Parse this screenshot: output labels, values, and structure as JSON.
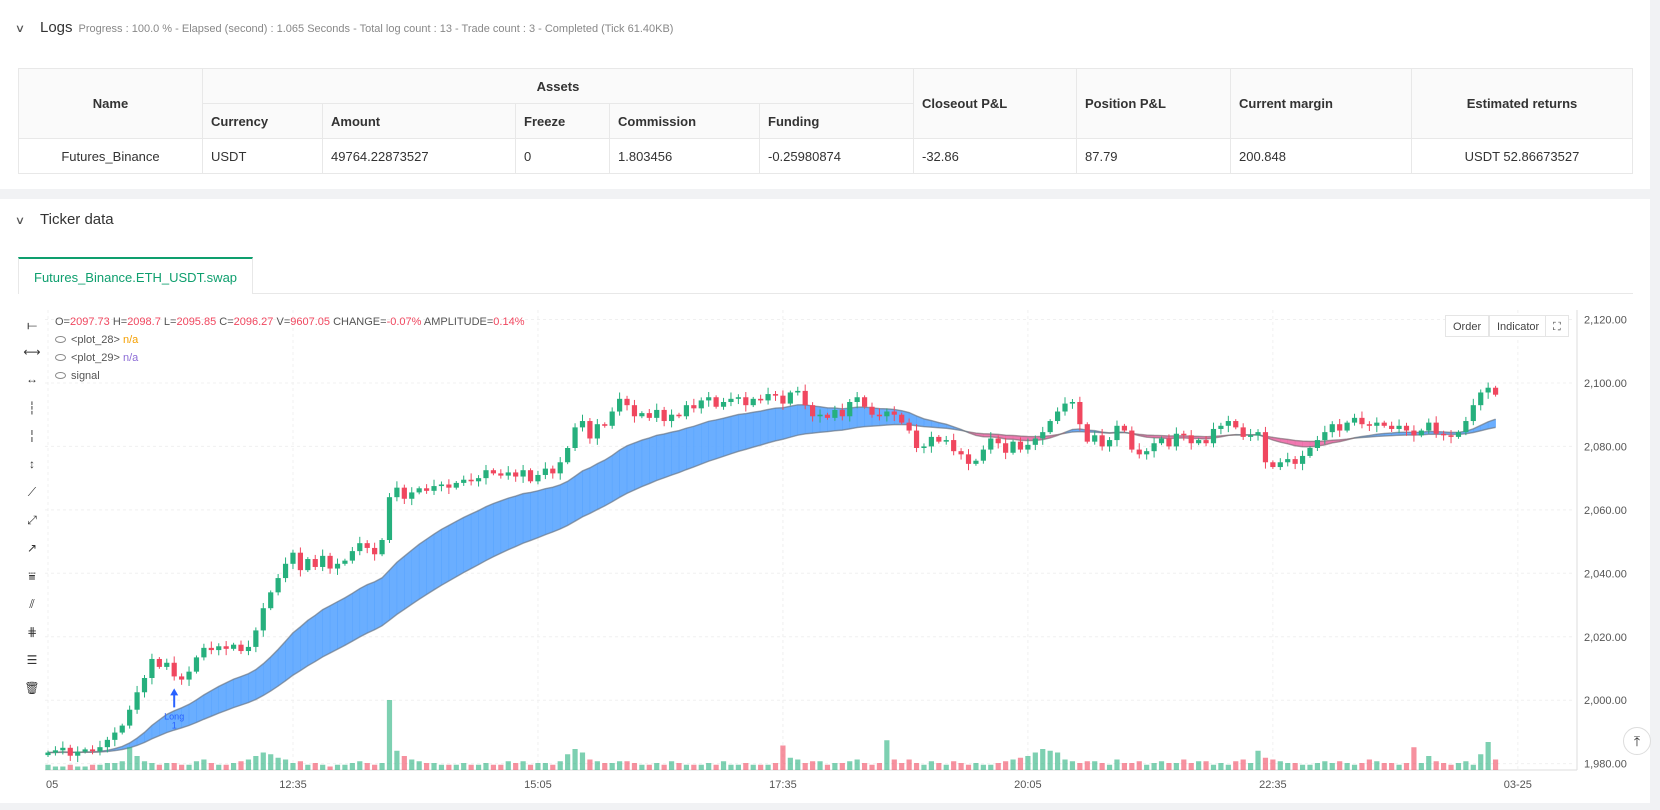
{
  "logs": {
    "title": "Logs",
    "status": "Progress : 100.0 % - Elapsed (second) : 1.065  Seconds - Total log count : 13 - Trade count : 3 - Completed (Tick 61.40KB)"
  },
  "assets_table": {
    "group_header": "Assets",
    "headers": {
      "name": "Name",
      "currency": "Currency",
      "amount": "Amount",
      "freeze": "Freeze",
      "commission": "Commission",
      "funding": "Funding",
      "closeout": "Closeout P&L",
      "position": "Position P&L",
      "margin": "Current margin",
      "returns": "Estimated returns"
    },
    "row": {
      "name": "Futures_Binance",
      "currency": "USDT",
      "amount": "49764.22873527",
      "freeze": "0",
      "commission": "1.803456",
      "funding": "-0.25980874",
      "closeout": "-32.86",
      "position": "87.79",
      "margin": "200.848",
      "returns": "USDT 52.86673527"
    }
  },
  "ticker": {
    "title": "Ticker data",
    "tab": "Futures_Binance.ETH_USDT.swap"
  },
  "legend": {
    "ohlc_o_label": "O=",
    "ohlc_o": "2097.73",
    "ohlc_h_label": "H=",
    "ohlc_h": "2098.7",
    "ohlc_l_label": "L=",
    "ohlc_l": "2095.85",
    "ohlc_c_label": "C=",
    "ohlc_c": "2096.27",
    "ohlc_v_label": "V=",
    "ohlc_v": "9607.05",
    "change_label": "CHANGE=",
    "change": "-0.07%",
    "amp_label": "AMPLITUDE=",
    "amp": "0.14%",
    "plot28": "<plot_28>",
    "plot28_val": "n/a",
    "plot29": "<plot_29>",
    "plot29_val": "n/a",
    "signal": "signal"
  },
  "controls": {
    "order": "Order",
    "indicator": "Indicator"
  },
  "chart_data": {
    "type": "candlestick",
    "symbol": "Futures_Binance.ETH_USDT.swap",
    "y_ticks": [
      "2,120.00",
      "2,100.00",
      "2,080.00",
      "2,060.00",
      "2,040.00",
      "2,020.00",
      "2,000.00",
      "1,980.00"
    ],
    "x_ticks": [
      "05",
      "12:35",
      "15:05",
      "17:35",
      "20:05",
      "22:35",
      "03-25"
    ],
    "ylim": [
      1978,
      2123
    ],
    "marker": {
      "label": "Long",
      "sub": "1",
      "price": 1999
    },
    "close_series": [
      1983.5,
      1984.2,
      1985.0,
      1982.5,
      1983.8,
      1984.5,
      1983.9,
      1985.2,
      1987.5,
      1989.8,
      1992.0,
      1997.0,
      2002.5,
      2007.0,
      2013.0,
      2010.5,
      2011.8,
      2007.5,
      2006.5,
      2009.0,
      2013.5,
      2016.5,
      2015.8,
      2017.0,
      2016.2,
      2017.5,
      2015.5,
      2016.8,
      2022.0,
      2029.0,
      2034.0,
      2038.5,
      2043.0,
      2046.5,
      2041.0,
      2044.5,
      2042.0,
      2045.5,
      2041.5,
      2043.0,
      2044.0,
      2047.0,
      2049.5,
      2048.0,
      2046.0,
      2050.5,
      2064.0,
      2067.0,
      2063.5,
      2065.5,
      2066.8,
      2066.0,
      2067.5,
      2068.0,
      2067.0,
      2068.5,
      2069.5,
      2069.0,
      2070.0,
      2072.5,
      2071.5,
      2070.8,
      2071.8,
      2070.5,
      2072.5,
      2069.0,
      2071.0,
      2073.0,
      2071.5,
      2075.0,
      2079.5,
      2086.0,
      2088.0,
      2082.5,
      2087.0,
      2086.5,
      2091.0,
      2095.0,
      2093.0,
      2089.5,
      2090.5,
      2089.0,
      2091.5,
      2088.0,
      2090.0,
      2089.5,
      2093.0,
      2092.0,
      2094.5,
      2095.5,
      2092.5,
      2094.0,
      2095.0,
      2095.5,
      2093.0,
      2095.0,
      2094.5,
      2096.5,
      2096.0,
      2093.5,
      2097.0,
      2097.5,
      2093.0,
      2089.5,
      2090.0,
      2089.0,
      2091.5,
      2089.5,
      2094.0,
      2095.5,
      2092.5,
      2090.0,
      2089.5,
      2091.0,
      2090.0,
      2087.5,
      2085.0,
      2079.5,
      2080.0,
      2083.0,
      2081.5,
      2082.0,
      2078.5,
      2077.5,
      2074.5,
      2075.5,
      2079.0,
      2082.5,
      2081.0,
      2078.0,
      2081.5,
      2079.0,
      2080.5,
      2082.5,
      2084.5,
      2088.0,
      2091.0,
      2093.5,
      2094.0,
      2087.0,
      2081.5,
      2083.5,
      2080.0,
      2082.0,
      2086.5,
      2085.0,
      2079.0,
      2077.5,
      2078.5,
      2081.0,
      2082.5,
      2080.0,
      2084.0,
      2083.5,
      2081.0,
      2082.0,
      2081.0,
      2085.5,
      2086.5,
      2088.0,
      2086.0,
      2083.0,
      2083.5,
      2084.5,
      2075.0,
      2073.5,
      2075.0,
      2076.0,
      2074.5,
      2077.0,
      2079.5,
      2082.0,
      2084.5,
      2087.0,
      2085.0,
      2087.5,
      2089.0,
      2087.0,
      2086.5,
      2087.5,
      2086.5,
      2085.5,
      2086.5,
      2085.0,
      2083.5,
      2085.0,
      2087.5,
      2084.0,
      2083.5,
      2083.0,
      2084.5,
      2088.0,
      2093.0,
      2097.0,
      2098.5,
      2096.3
    ],
    "volume_series": [
      3,
      2,
      2,
      3,
      2,
      2,
      3,
      3,
      4,
      4,
      5,
      13,
      8,
      5,
      4,
      3,
      4,
      4,
      3,
      3,
      5,
      6,
      4,
      3,
      3,
      4,
      5,
      6,
      8,
      10,
      9,
      7,
      6,
      4,
      5,
      3,
      4,
      3,
      2,
      3,
      3,
      4,
      5,
      4,
      3,
      4,
      40,
      11,
      8,
      6,
      5,
      4,
      4,
      3,
      3,
      3,
      4,
      3,
      3,
      4,
      3,
      3,
      5,
      4,
      5,
      3,
      4,
      4,
      3,
      5,
      9,
      12,
      10,
      6,
      5,
      4,
      4,
      5,
      5,
      4,
      3,
      3,
      4,
      3,
      5,
      4,
      3,
      3,
      3,
      4,
      3,
      5,
      3,
      3,
      4,
      3,
      3,
      3,
      4,
      14,
      7,
      6,
      4,
      5,
      5,
      3,
      4,
      4,
      5,
      6,
      4,
      3,
      4,
      17,
      6,
      4,
      6,
      4,
      3,
      5,
      4,
      3,
      5,
      4,
      3,
      4,
      3,
      3,
      4,
      5,
      6,
      7,
      8,
      10,
      12,
      11,
      10,
      6,
      5,
      4,
      5,
      5,
      4,
      3,
      6,
      4,
      4,
      5,
      3,
      4,
      5,
      4,
      4,
      6,
      4,
      5,
      5,
      3,
      4,
      3,
      5,
      6,
      4,
      11,
      7,
      6,
      5,
      4,
      4,
      3,
      3,
      4,
      5,
      4,
      5,
      4,
      3,
      4,
      6,
      5,
      4,
      4,
      3,
      4,
      13,
      4,
      8,
      5,
      4,
      3,
      4,
      5,
      3,
      9,
      16,
      6
    ]
  }
}
